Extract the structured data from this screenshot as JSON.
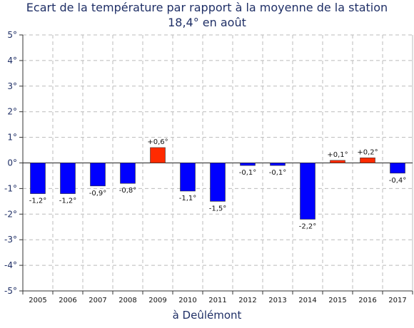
{
  "chart_data": {
    "type": "bar",
    "title": "Ecart de la température par rapport à la moyenne de la station",
    "subtitle": "18,4° en août",
    "xlabel": "à Deûlémont",
    "ylabel": "",
    "ylim": [
      -5,
      5
    ],
    "yticks": [
      "5°",
      "4°",
      "3°",
      "2°",
      "1°",
      "0°",
      "-1°",
      "-2°",
      "-3°",
      "-4°",
      "-5°"
    ],
    "categories": [
      "2005",
      "2006",
      "2007",
      "2008",
      "2009",
      "2010",
      "2011",
      "2012",
      "2013",
      "2014",
      "2015",
      "2016",
      "2017"
    ],
    "values": [
      -1.2,
      -1.2,
      -0.9,
      -0.8,
      0.6,
      -1.1,
      -1.5,
      -0.1,
      -0.1,
      -2.2,
      0.1,
      0.2,
      -0.4
    ],
    "data_labels": [
      "-1,2°",
      "-1,2°",
      "-0,9°",
      "-0,8°",
      "+0,6°",
      "-1,1°",
      "-1,5°",
      "-0,1°",
      "-0,1°",
      "-2,2°",
      "+0,1°",
      "+0,2°",
      "-0,4°"
    ],
    "grid": true,
    "colors": {
      "positive": "#ff2a00",
      "negative": "#0000ff",
      "grid": "#bbbbbb",
      "text": "#1f2f66"
    }
  }
}
